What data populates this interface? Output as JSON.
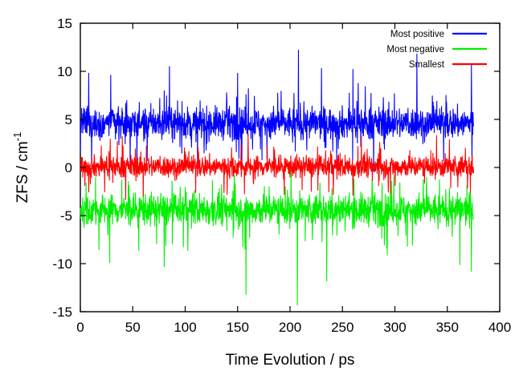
{
  "chart_data": {
    "type": "line",
    "title": "",
    "xlabel": "Time Evolution / ps",
    "ylabel": {
      "main": "ZFS / cm",
      "superscript": "-1"
    },
    "xlim": [
      0,
      400
    ],
    "ylim": [
      -15,
      15
    ],
    "xticks": [
      0,
      50,
      100,
      150,
      200,
      250,
      300,
      350,
      400
    ],
    "yticks": [
      15,
      10,
      5,
      0,
      -5,
      -10,
      -15
    ],
    "grid": false,
    "legend_position": "top-right",
    "x_range_of_series": [
      0,
      375
    ],
    "series": [
      {
        "name": "Most positive",
        "color": "#0000ff",
        "mean": 4.6,
        "spread": 1.6,
        "peaks": [
          [
            8,
            9.8
          ],
          [
            29,
            9.6
          ],
          [
            85,
            10.5
          ],
          [
            150,
            9.8
          ],
          [
            208,
            12.2
          ],
          [
            230,
            10.3
          ],
          [
            260,
            10.2
          ],
          [
            321,
            11.8
          ],
          [
            373,
            10.8
          ]
        ],
        "troughs": [
          [
            0,
            1.6
          ],
          [
            120,
            1.8
          ],
          [
            205,
            1.7
          ],
          [
            290,
            1.9
          ]
        ]
      },
      {
        "name": "Most negative",
        "color": "#00ee00",
        "mean": -4.4,
        "spread": 1.6,
        "peaks": [
          [
            60,
            -2.2
          ],
          [
            180,
            -2.0
          ],
          [
            240,
            -2.2
          ],
          [
            330,
            -2.1
          ],
          [
            372,
            -2.4
          ]
        ],
        "troughs": [
          [
            28,
            -9.9
          ],
          [
            80,
            -10.3
          ],
          [
            158,
            -13.2
          ],
          [
            207,
            -14.3
          ],
          [
            235,
            -11.8
          ],
          [
            362,
            -10.1
          ],
          [
            373,
            -10.8
          ]
        ]
      },
      {
        "name": "Smallest",
        "color": "#ff0000",
        "mean": 0.1,
        "spread": 1.1,
        "peaks": [
          [
            40,
            3.2
          ],
          [
            160,
            3.5
          ],
          [
            268,
            3.3
          ],
          [
            352,
            2.9
          ]
        ],
        "troughs": [
          [
            60,
            -3.0
          ],
          [
            140,
            -2.8
          ],
          [
            260,
            -2.9
          ],
          [
            372,
            -2.6
          ]
        ]
      }
    ]
  }
}
